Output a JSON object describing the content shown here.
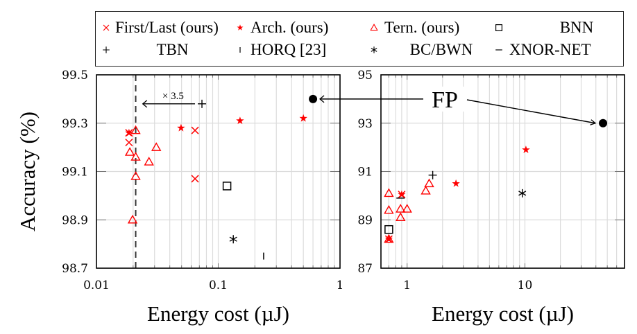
{
  "chart_data": [
    {
      "type": "scatter",
      "panel": "left",
      "title": "",
      "xlabel": "Energy cost (µJ)",
      "ylabel": "Accuracy (%)",
      "xscale": "log",
      "xlim": [
        0.01,
        1
      ],
      "ylim": [
        98.7,
        99.5
      ],
      "xticks": [
        {
          "v": 0.01,
          "label": "0.01"
        },
        {
          "v": 0.1,
          "label": "0.1"
        },
        {
          "v": 1,
          "label": "1"
        }
      ],
      "yticks": [
        {
          "v": 98.7,
          "label": "98.7"
        },
        {
          "v": 98.9,
          "label": "98.9"
        },
        {
          "v": 99.1,
          "label": "99.1"
        },
        {
          "v": 99.3,
          "label": "99.3"
        },
        {
          "v": 99.5,
          "label": "99.5"
        }
      ],
      "grid": true,
      "series": [
        {
          "name": "First/Last (ours)",
          "marker": "x",
          "color": "#ff0000",
          "points": [
            [
              0.0185,
              99.26
            ],
            [
              0.0185,
              99.22
            ],
            [
              0.0645,
              99.27
            ],
            [
              0.0645,
              99.07
            ]
          ]
        },
        {
          "name": "Arch. (ours)",
          "marker": "star",
          "color": "#ff0000",
          "points": [
            [
              0.0185,
              99.26
            ],
            [
              0.0495,
              99.28
            ],
            [
              0.151,
              99.31
            ],
            [
              0.5,
              99.32
            ]
          ]
        },
        {
          "name": "Tern. (ours)",
          "marker": "triangle",
          "color": "#ff0000",
          "points": [
            [
              0.021,
              99.27
            ],
            [
              0.0188,
              99.18
            ],
            [
              0.021,
              99.16
            ],
            [
              0.027,
              99.14
            ],
            [
              0.031,
              99.2
            ],
            [
              0.021,
              99.08
            ],
            [
              0.0198,
              98.9
            ]
          ]
        },
        {
          "name": "TBN",
          "marker": "plus",
          "color": "#000000",
          "points": [
            [
              0.0735,
              99.38
            ]
          ]
        },
        {
          "name": "BNN",
          "marker": "square",
          "color": "#000000",
          "points": [
            [
              0.118,
              99.04
            ]
          ]
        },
        {
          "name": "BC/BWN",
          "marker": "asterisk",
          "color": "#000000",
          "points": [
            [
              0.133,
              98.82
            ]
          ]
        },
        {
          "name": "HORQ [23]",
          "marker": "vbar",
          "color": "#000000",
          "points": [
            [
              0.236,
              98.75
            ]
          ]
        },
        {
          "name": "FP",
          "marker": "dot",
          "color": "#000000",
          "points": [
            [
              0.6,
              99.4
            ]
          ]
        }
      ],
      "annotations": [
        {
          "type": "vline-dashed",
          "x": 0.021
        },
        {
          "type": "arrow",
          "from": [
            0.0735,
            99.38
          ],
          "to": [
            0.024,
            99.38
          ],
          "label": "× 3.5"
        }
      ]
    },
    {
      "type": "scatter",
      "panel": "right",
      "title": "",
      "xlabel": "Energy cost (µJ)",
      "ylabel": "",
      "xscale": "log",
      "xlim": [
        0.6,
        70
      ],
      "ylim": [
        87,
        95
      ],
      "xticks": [
        {
          "v": 1,
          "label": "1"
        },
        {
          "v": 10,
          "label": "10"
        }
      ],
      "yticks": [
        {
          "v": 87,
          "label": "87"
        },
        {
          "v": 89,
          "label": "89"
        },
        {
          "v": 91,
          "label": "91"
        },
        {
          "v": 93,
          "label": "93"
        },
        {
          "v": 95,
          "label": "95"
        }
      ],
      "grid": true,
      "series": [
        {
          "name": "First/Last (ours)",
          "marker": "x",
          "color": "#ff0000",
          "points": [
            [
              0.9,
              90.05
            ],
            [
              0.7,
              88.2
            ]
          ]
        },
        {
          "name": "Arch. (ours)",
          "marker": "star",
          "color": "#ff0000",
          "points": [
            [
              0.9,
              90.05
            ],
            [
              0.7,
              88.2
            ],
            [
              2.6,
              90.5
            ],
            [
              10.2,
              91.9
            ]
          ]
        },
        {
          "name": "Tern. (ours)",
          "marker": "triangle",
          "color": "#ff0000",
          "points": [
            [
              0.7,
              90.1
            ],
            [
              0.7,
              89.4
            ],
            [
              0.88,
              89.45
            ],
            [
              1.0,
              89.45
            ],
            [
              0.88,
              89.1
            ],
            [
              1.44,
              90.2
            ],
            [
              1.54,
              90.5
            ],
            [
              0.7,
              88.2
            ]
          ]
        },
        {
          "name": "TBN",
          "marker": "plus",
          "color": "#000000",
          "points": [
            [
              1.65,
              90.85
            ]
          ]
        },
        {
          "name": "BNN",
          "marker": "square",
          "color": "#000000",
          "points": [
            [
              0.7,
              88.6
            ]
          ]
        },
        {
          "name": "BC/BWN",
          "marker": "asterisk",
          "color": "#000000",
          "points": [
            [
              9.5,
              90.1
            ]
          ]
        },
        {
          "name": "XNOR-NET",
          "marker": "hbar",
          "color": "#000000",
          "points": [
            [
              0.88,
              89.9
            ]
          ]
        },
        {
          "name": "FP",
          "marker": "dot",
          "color": "#000000",
          "points": [
            [
              46,
              93.0
            ]
          ]
        }
      ]
    }
  ],
  "legend": {
    "placement": "top",
    "entries": [
      {
        "label": "First/Last (ours)",
        "marker": "x",
        "color": "#ff0000"
      },
      {
        "label": "Arch. (ours)",
        "marker": "star",
        "color": "#ff0000"
      },
      {
        "label": "Tern. (ours)",
        "marker": "triangle",
        "color": "#ff0000"
      },
      {
        "label": "BNN",
        "marker": "square",
        "color": "#000000"
      },
      {
        "label": "TBN",
        "marker": "plus",
        "color": "#000000"
      },
      {
        "label": "HORQ [23]",
        "marker": "vbar",
        "color": "#000000"
      },
      {
        "label": "BC/BWN",
        "marker": "asterisk",
        "color": "#000000"
      },
      {
        "label": "XNOR-NET",
        "marker": "hbar",
        "color": "#000000"
      }
    ]
  },
  "fp_label": "FP",
  "colors": {
    "ours": "#ff0000",
    "baseline": "#000000",
    "grid": "#dcdcdc"
  }
}
